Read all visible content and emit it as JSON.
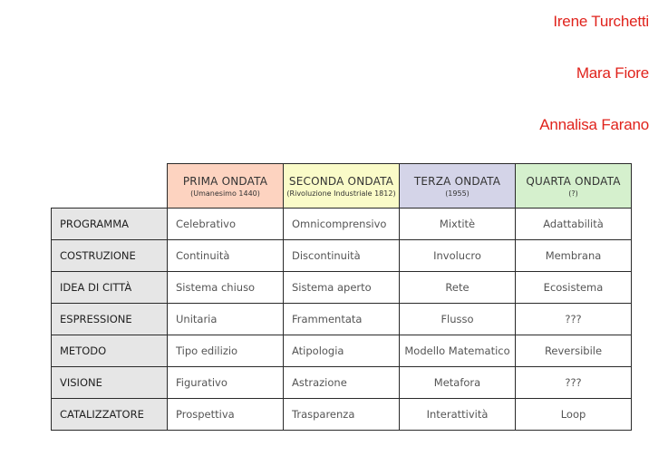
{
  "authors": [
    "Irene Turchetti",
    "Mara Fiore",
    "Annalisa Farano"
  ],
  "colors": {
    "author_text": "#e0231c",
    "wave1": "#fdd3c0",
    "wave2": "#fafbc8",
    "wave3": "#d4d4e8",
    "wave4": "#d5f0cd",
    "row_header": "#e6e6e6"
  },
  "table": {
    "columns": [
      {
        "title": "PRIMA ONDATA",
        "subtitle": "(Umanesimo 1440)"
      },
      {
        "title": "SECONDA ONDATA",
        "subtitle": "(Rivoluzione Industriale 1812)"
      },
      {
        "title": "TERZA ONDATA",
        "subtitle": "(1955)"
      },
      {
        "title": "QUARTA ONDATA",
        "subtitle": "(?)"
      }
    ],
    "rows": [
      {
        "label": "PROGRAMMA",
        "cells": [
          "Celebrativo",
          "Omnicomprensivo",
          "Mixtitè",
          "Adattabilità"
        ]
      },
      {
        "label": "COSTRUZIONE",
        "cells": [
          "Continuità",
          "Discontinuità",
          "Involucro",
          "Membrana"
        ]
      },
      {
        "label": "IDEA DI CITTÀ",
        "cells": [
          "Sistema chiuso",
          "Sistema aperto",
          "Rete",
          "Ecosistema"
        ]
      },
      {
        "label": "ESPRESSIONE",
        "cells": [
          "Unitaria",
          "Frammentata",
          "Flusso",
          "???"
        ]
      },
      {
        "label": "METODO",
        "cells": [
          "Tipo edilizio",
          "Atipologia",
          "Modello Matematico",
          "Reversibile"
        ]
      },
      {
        "label": "VISIONE",
        "cells": [
          "Figurativo",
          "Astrazione",
          "Metafora",
          "???"
        ]
      },
      {
        "label": "CATALIZZATORE",
        "cells": [
          "Prospettiva",
          "Trasparenza",
          "Interattività",
          "Loop"
        ]
      }
    ]
  }
}
